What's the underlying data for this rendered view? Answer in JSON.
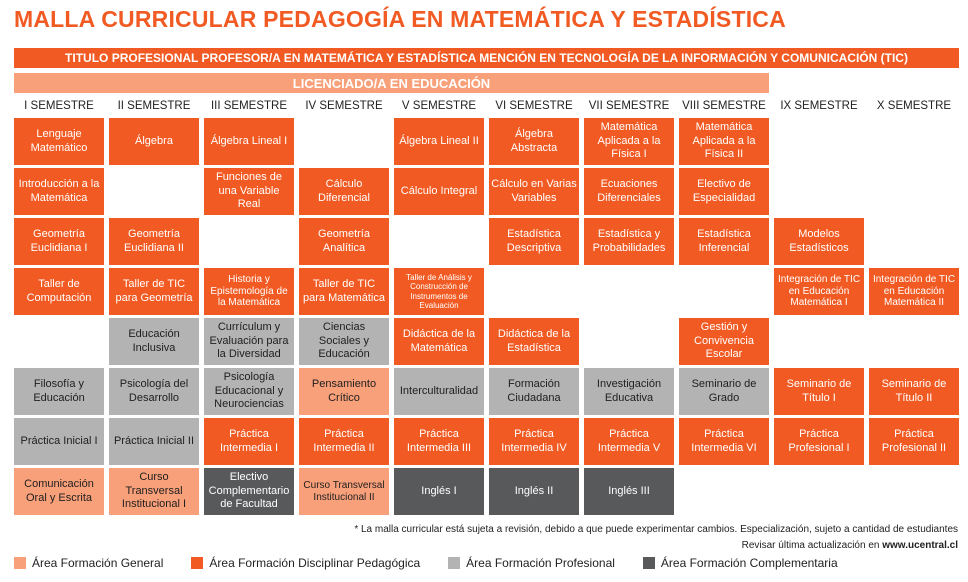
{
  "title": "MALLA CURRICULAR PEDAGOGÍA EN MATEMÁTICA Y ESTADÍSTICA",
  "banner": "TITULO PROFESIONAL PROFESOR/A EN MATEMÁTICA Y ESTADÍSTICA MENCIÓN EN TECNOLOGÍA DE LA INFORMACIÓN Y COMUNICACIÓN (TIC)",
  "sub_banner": "LICENCIADO/A EN EDUCACIÓN",
  "semesters": [
    "I SEMESTRE",
    "II SEMESTRE",
    "III SEMESTRE",
    "IV SEMESTRE",
    "V SEMESTRE",
    "VI SEMESTRE",
    "VII SEMESTRE",
    "VIII SEMESTRE",
    "IX SEMESTRE",
    "X SEMESTRE"
  ],
  "courses": [
    {
      "label": "Lenguaje Matemático",
      "area": "disc",
      "col": 1,
      "row": 1
    },
    {
      "label": "Álgebra",
      "area": "disc",
      "col": 2,
      "row": 1
    },
    {
      "label": "Álgebra Lineal I",
      "area": "disc",
      "col": 3,
      "row": 1
    },
    {
      "label": "Álgebra Lineal II",
      "area": "disc",
      "col": 5,
      "row": 1
    },
    {
      "label": "Álgebra Abstracta",
      "area": "disc",
      "col": 6,
      "row": 1
    },
    {
      "label": "Matemática Aplicada a la Física I",
      "area": "disc",
      "col": 7,
      "row": 1
    },
    {
      "label": "Matemática Aplicada a la Física II",
      "area": "disc",
      "col": 8,
      "row": 1
    },
    {
      "label": "Introducción a la Matemática",
      "area": "disc",
      "col": 1,
      "row": 2
    },
    {
      "label": "Funciones de una Variable Real",
      "area": "disc",
      "col": 3,
      "row": 2
    },
    {
      "label": "Cálculo Diferencial",
      "area": "disc",
      "col": 4,
      "row": 2
    },
    {
      "label": "Cálculo Integral",
      "area": "disc",
      "col": 5,
      "row": 2
    },
    {
      "label": "Cálculo en Varias Variables",
      "area": "disc",
      "col": 6,
      "row": 2
    },
    {
      "label": "Ecuaciones Diferenciales",
      "area": "disc",
      "col": 7,
      "row": 2
    },
    {
      "label": "Electivo de Especialidad",
      "area": "disc",
      "col": 8,
      "row": 2
    },
    {
      "label": "Geometría Euclidiana I",
      "area": "disc",
      "col": 1,
      "row": 3
    },
    {
      "label": "Geometría Euclidiana II",
      "area": "disc",
      "col": 2,
      "row": 3
    },
    {
      "label": "Geometría Analítica",
      "area": "disc",
      "col": 4,
      "row": 3
    },
    {
      "label": "Estadística Descriptiva",
      "area": "disc",
      "col": 6,
      "row": 3
    },
    {
      "label": "Estadística y Probabilidades",
      "area": "disc",
      "col": 7,
      "row": 3
    },
    {
      "label": "Estadística Inferencial",
      "area": "disc",
      "col": 8,
      "row": 3
    },
    {
      "label": "Modelos Estadísticos",
      "area": "disc",
      "col": 9,
      "row": 3
    },
    {
      "label": "Taller de Computación",
      "area": "disc",
      "col": 1,
      "row": 4
    },
    {
      "label": "Taller de TIC para Geometría",
      "area": "disc",
      "col": 2,
      "row": 4
    },
    {
      "label": "Historia y Epistemología de la Matemática",
      "area": "disc",
      "col": 3,
      "row": 4,
      "size": "small"
    },
    {
      "label": "Taller de TIC para Matemática",
      "area": "disc",
      "col": 4,
      "row": 4
    },
    {
      "label": "Taller de Análisis y Construcción de Instrumentos de Evaluación",
      "area": "disc",
      "col": 5,
      "row": 4,
      "size": "tiny"
    },
    {
      "label": "Integración de TIC en Educación Matemática I",
      "area": "disc",
      "col": 9,
      "row": 4,
      "size": "small"
    },
    {
      "label": "Integración de TIC en Educación Matemática II",
      "area": "disc",
      "col": 10,
      "row": 4,
      "size": "small"
    },
    {
      "label": "Educación Inclusiva",
      "area": "prof",
      "col": 2,
      "row": 5
    },
    {
      "label": "Currículum y Evaluación para la Diversidad",
      "area": "prof",
      "col": 3,
      "row": 5
    },
    {
      "label": "Ciencias Sociales y Educación",
      "area": "prof",
      "col": 4,
      "row": 5
    },
    {
      "label": "Didáctica de la Matemática",
      "area": "disc",
      "col": 5,
      "row": 5
    },
    {
      "label": "Didáctica de la Estadística",
      "area": "disc",
      "col": 6,
      "row": 5
    },
    {
      "label": "Gestión y Convivencia Escolar",
      "area": "disc",
      "col": 8,
      "row": 5
    },
    {
      "label": "Filosofía y Educación",
      "area": "prof",
      "col": 1,
      "row": 6
    },
    {
      "label": "Psicología del Desarrollo",
      "area": "prof",
      "col": 2,
      "row": 6
    },
    {
      "label": "Psicología Educacional y Neurociencias",
      "area": "prof",
      "col": 3,
      "row": 6
    },
    {
      "label": "Pensamiento Crítico",
      "area": "gen",
      "col": 4,
      "row": 6
    },
    {
      "label": "Interculturalidad",
      "area": "prof",
      "col": 5,
      "row": 6
    },
    {
      "label": "Formación Ciudadana",
      "area": "prof",
      "col": 6,
      "row": 6
    },
    {
      "label": "Investigación Educativa",
      "area": "prof",
      "col": 7,
      "row": 6
    },
    {
      "label": "Seminario de Grado",
      "area": "prof",
      "col": 8,
      "row": 6
    },
    {
      "label": "Seminario de Título I",
      "area": "disc",
      "col": 9,
      "row": 6
    },
    {
      "label": "Seminario de Título II",
      "area": "disc",
      "col": 10,
      "row": 6
    },
    {
      "label": "Práctica Inicial I",
      "area": "prof",
      "col": 1,
      "row": 7
    },
    {
      "label": "Práctica Inicial II",
      "area": "prof",
      "col": 2,
      "row": 7
    },
    {
      "label": "Práctica Intermedia I",
      "area": "disc",
      "col": 3,
      "row": 7
    },
    {
      "label": "Práctica Intermedia II",
      "area": "disc",
      "col": 4,
      "row": 7
    },
    {
      "label": "Práctica Intermedia III",
      "area": "disc",
      "col": 5,
      "row": 7
    },
    {
      "label": "Práctica Intermedia IV",
      "area": "disc",
      "col": 6,
      "row": 7
    },
    {
      "label": "Práctica Intermedia V",
      "area": "disc",
      "col": 7,
      "row": 7
    },
    {
      "label": "Práctica Intermedia VI",
      "area": "disc",
      "col": 8,
      "row": 7
    },
    {
      "label": "Práctica Profesional I",
      "area": "disc",
      "col": 9,
      "row": 7
    },
    {
      "label": "Práctica Profesional II",
      "area": "disc",
      "col": 10,
      "row": 7
    },
    {
      "label": "Comunicación Oral y Escrita",
      "area": "gen",
      "col": 1,
      "row": 8
    },
    {
      "label": "Curso Transversal Institucional I",
      "area": "gen",
      "col": 2,
      "row": 8
    },
    {
      "label": "Electivo Complementario de Facultad",
      "area": "comp",
      "col": 3,
      "row": 8
    },
    {
      "label": "Curso Transversal Institucional II",
      "area": "gen",
      "col": 4,
      "row": 8,
      "size": "small"
    },
    {
      "label": "Inglés I",
      "area": "comp",
      "col": 5,
      "row": 8
    },
    {
      "label": "Inglés II",
      "area": "comp",
      "col": 6,
      "row": 8
    },
    {
      "label": "Inglés III",
      "area": "comp",
      "col": 7,
      "row": 8
    }
  ],
  "footnote": {
    "line1": "* La malla curricular está sujeta a revisión, debido a que puede experimentar cambios. Especialización, sujeto a cantidad de estudiantes",
    "line2_text": "Revisar última actualización en ",
    "line2_link": "www.ucentral.cl"
  },
  "legend": [
    {
      "label": "Área Formación General",
      "color": "#f8a07a"
    },
    {
      "label": "Área Formación Disciplinar Pedagógica",
      "color": "#f15a22"
    },
    {
      "label": "Área Formación Profesional",
      "color": "#b3b3b3"
    },
    {
      "label": "Área Formación Complementaria",
      "color": "#58595b"
    }
  ]
}
